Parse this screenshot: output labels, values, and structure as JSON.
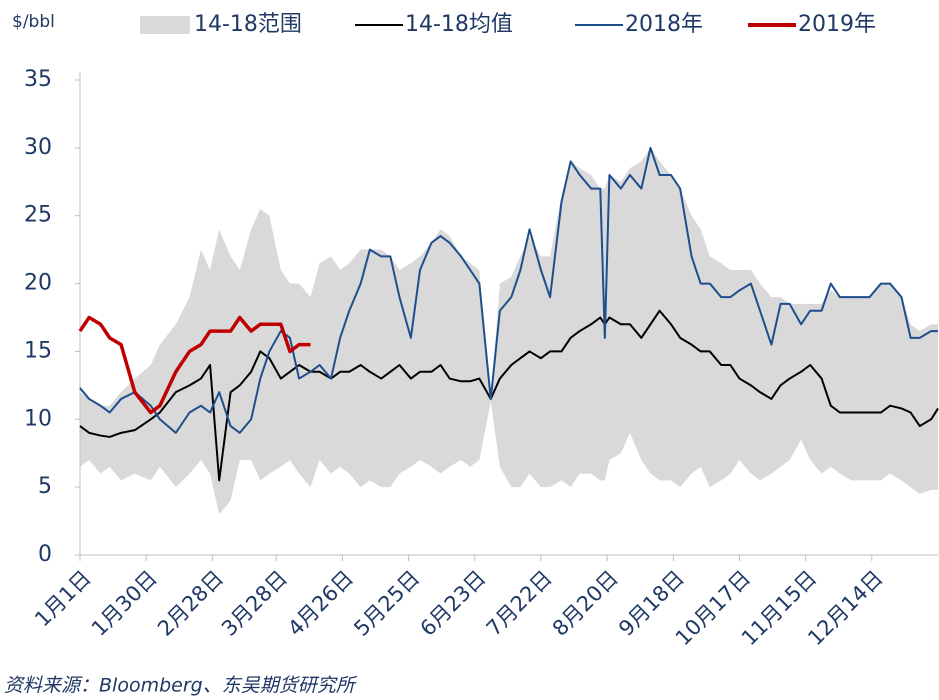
{
  "chart_data": {
    "type": "line",
    "y_unit": "$/bbl",
    "source": "资料来源：Bloomberg、东吴期货研究所",
    "xlim": [
      0,
      376
    ],
    "ylim": [
      0,
      35
    ],
    "yticks": [
      0,
      5,
      10,
      15,
      20,
      25,
      30,
      35
    ],
    "xticks": [
      {
        "value": 0,
        "label": "1月1日"
      },
      {
        "value": 29,
        "label": "1月30日"
      },
      {
        "value": 58,
        "label": "2月28日"
      },
      {
        "value": 86,
        "label": "3月28日"
      },
      {
        "value": 115,
        "label": "4月26日"
      },
      {
        "value": 144,
        "label": "5月25日"
      },
      {
        "value": 173,
        "label": "6月23日"
      },
      {
        "value": 202,
        "label": "7月22日"
      },
      {
        "value": 231,
        "label": "8月20日"
      },
      {
        "value": 260,
        "label": "9月18日"
      },
      {
        "value": 289,
        "label": "10月17日"
      },
      {
        "value": 318,
        "label": "11月15日"
      },
      {
        "value": 347,
        "label": "12月14日"
      }
    ],
    "x": [
      0,
      4,
      9,
      13,
      18,
      24,
      31,
      35,
      42,
      48,
      53,
      57,
      61,
      66,
      70,
      75,
      79,
      83,
      88,
      92,
      96,
      101,
      105,
      110,
      114,
      118,
      123,
      127,
      132,
      136,
      140,
      145,
      149,
      154,
      158,
      162,
      167,
      171,
      175,
      180,
      184,
      189,
      193,
      197,
      202,
      206,
      211,
      215,
      219,
      224,
      228,
      230,
      232,
      237,
      241,
      246,
      250,
      254,
      259,
      263,
      268,
      272,
      276,
      281,
      285,
      289,
      294,
      298,
      303,
      307,
      311,
      316,
      320,
      325,
      329,
      333,
      338,
      342,
      346,
      351,
      355,
      360,
      364,
      368,
      373,
      376
    ],
    "band": {
      "name": "14-18范围",
      "color": "#d9d9d9",
      "upper": [
        12,
        11.5,
        11,
        11,
        12,
        13,
        14,
        15.5,
        17,
        19,
        22.5,
        21,
        24,
        22,
        21,
        24,
        25.5,
        25,
        21,
        20,
        20,
        19,
        21.5,
        22,
        21,
        21.5,
        22.5,
        22.5,
        22.5,
        22,
        21,
        21.5,
        22,
        23,
        24,
        23.5,
        22,
        21.5,
        21,
        11.5,
        20,
        20.5,
        22,
        23.5,
        22,
        22,
        26.5,
        29,
        28.5,
        28,
        27,
        27,
        28,
        27.5,
        28.5,
        29,
        30,
        29,
        28,
        27,
        25,
        24,
        22,
        21.5,
        21,
        21,
        21,
        20,
        19,
        19,
        18.5,
        18.5,
        18.5,
        18.5,
        19.5,
        19,
        19,
        19,
        19,
        20,
        20,
        19,
        17,
        16.5,
        17,
        17
      ],
      "lower": [
        6.5,
        7,
        6,
        6.5,
        5.5,
        6,
        5.5,
        6.5,
        5,
        6,
        7,
        6,
        3,
        4,
        7,
        7,
        5.5,
        6,
        6.5,
        7,
        6,
        5,
        7,
        6,
        6.5,
        6,
        5,
        5.5,
        5,
        5,
        6,
        6.5,
        7,
        6.5,
        6,
        6.5,
        7,
        6.5,
        7,
        11.3,
        6.5,
        5,
        5,
        6,
        5,
        5,
        5.5,
        5,
        6,
        6,
        5.5,
        5.5,
        7,
        7.5,
        9,
        7,
        6,
        5.5,
        5.5,
        5,
        6,
        6.5,
        5,
        5.5,
        6,
        7,
        6,
        5.5,
        6,
        6.5,
        7,
        8.5,
        7,
        6,
        6.5,
        6,
        5.5,
        5.5,
        5.5,
        5.5,
        6,
        5.5,
        5,
        4.5,
        4.8,
        4.8
      ]
    },
    "series": [
      {
        "name": "14-18均值",
        "color": "#000000",
        "values": [
          9.5,
          9,
          8.8,
          8.7,
          9,
          9.2,
          10,
          10.5,
          12,
          12.5,
          13,
          14,
          5.5,
          12,
          12.5,
          13.5,
          15,
          14.5,
          13,
          13.5,
          14,
          13.5,
          13.5,
          13,
          13.5,
          13.5,
          14,
          13.5,
          13,
          13.5,
          14,
          13,
          13.5,
          13.5,
          14,
          13,
          12.8,
          12.8,
          13,
          11.5,
          13,
          14,
          14.5,
          15,
          14.5,
          15,
          15,
          16,
          16.5,
          17,
          17.5,
          17,
          17.5,
          17,
          17,
          16,
          17,
          18,
          17,
          16,
          15.5,
          15,
          15,
          14,
          14,
          13,
          12.5,
          12,
          11.5,
          12.5,
          13,
          13.5,
          14,
          13,
          11,
          10.5,
          10.5,
          10.5,
          10.5,
          10.5,
          11,
          10.8,
          10.5,
          9.5,
          10,
          10.8
        ]
      },
      {
        "name": "2018年",
        "color": "#1f4e8c",
        "values": [
          12.3,
          11.5,
          11,
          10.5,
          11.5,
          12,
          11,
          10,
          9,
          10.5,
          11,
          10.5,
          12,
          9.5,
          9,
          10,
          13,
          15,
          16.5,
          16,
          13,
          13.5,
          14,
          13,
          16,
          18,
          20,
          22.5,
          22,
          22,
          19,
          16,
          21,
          23,
          23.5,
          23,
          22,
          21,
          20,
          11.5,
          18,
          19,
          21,
          24,
          21,
          19,
          26,
          29,
          28,
          27,
          27,
          16,
          28,
          27,
          28,
          27,
          30,
          28,
          28,
          27,
          22,
          20,
          20,
          19,
          19,
          19.5,
          20,
          18,
          15.5,
          18.5,
          18.5,
          17,
          18,
          18,
          20,
          19,
          19,
          19,
          19,
          20,
          20,
          19,
          16,
          16,
          16.5,
          16.5
        ]
      },
      {
        "name": "2019年",
        "color": "#c00000",
        "values": [
          16.5,
          17.5,
          17,
          16,
          15.5,
          12,
          10.5,
          11,
          13.5,
          15,
          15.5,
          16.5,
          16.5,
          16.5,
          17.5,
          16.5,
          17,
          17,
          17,
          15,
          15.5,
          15.5,
          null,
          null,
          null,
          null,
          null,
          null,
          null,
          null,
          null,
          null,
          null,
          null,
          null,
          null,
          null,
          null,
          null,
          null,
          null,
          null,
          null,
          null,
          null,
          null,
          null,
          null,
          null,
          null,
          null,
          null,
          null,
          null,
          null,
          null,
          null,
          null,
          null,
          null,
          null,
          null,
          null,
          null,
          null,
          null,
          null,
          null,
          null,
          null,
          null,
          null,
          null,
          null,
          null,
          null,
          null,
          null,
          null,
          null,
          null,
          null,
          null,
          null,
          null,
          null
        ]
      }
    ]
  }
}
